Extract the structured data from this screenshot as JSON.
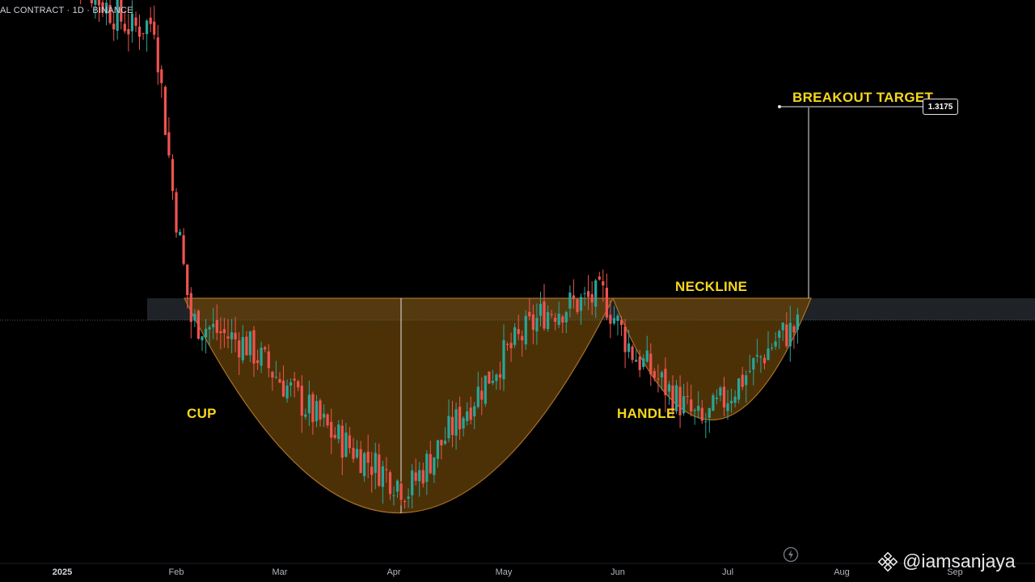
{
  "header": {
    "title": "AL CONTRACT · 1D · BINANCE"
  },
  "annotations": {
    "neckline": "NECKLINE",
    "cup": "CUP",
    "handle": "HANDLE",
    "breakout_target": "BREAKOUT TARGET",
    "target_price": "1.3175"
  },
  "x_axis": {
    "labels": [
      {
        "text": "2025",
        "bold": true
      },
      {
        "text": "Feb"
      },
      {
        "text": "Mar"
      },
      {
        "text": "Apr"
      },
      {
        "text": "May"
      },
      {
        "text": "Jun"
      },
      {
        "text": "Jul"
      },
      {
        "text": "Aug"
      },
      {
        "text": "Sep"
      }
    ]
  },
  "watermark": {
    "handle": "@iamsanjaya",
    "logo_icon": "binance-logo-icon"
  },
  "colors": {
    "up": "#26a69a",
    "down": "#ef5350",
    "pattern_fill": "#6b4408",
    "pattern_stroke": "#a8712a",
    "label": "#f5d71e",
    "neckline_zone": "#2a2e33"
  },
  "chart_data": {
    "type": "candlestick",
    "title": "",
    "timeframe": "1D",
    "exchange": "BINANCE",
    "x": [
      "Jan 2025",
      "Feb",
      "Mar",
      "Apr",
      "May",
      "Jun",
      "Jul",
      "Aug",
      "Sep"
    ],
    "y_approx_path": [
      {
        "date": "2025-01-01",
        "close": 1.7
      },
      {
        "date": "2025-01-10",
        "close": 1.64
      },
      {
        "date": "2025-01-20",
        "close": 1.6
      },
      {
        "date": "2025-01-26",
        "close": 1.61
      },
      {
        "date": "2025-01-31",
        "close": 1.4
      },
      {
        "date": "2025-02-05",
        "close": 1.24
      },
      {
        "date": "2025-02-20",
        "close": 1.21
      },
      {
        "date": "2025-03-15",
        "close": 1.1
      },
      {
        "date": "2025-04-05",
        "close": 1.03
      },
      {
        "date": "2025-04-30",
        "close": 1.19
      },
      {
        "date": "2025-05-12",
        "close": 1.25
      },
      {
        "date": "2025-05-28",
        "close": 1.27
      },
      {
        "date": "2025-06-05",
        "close": 1.2
      },
      {
        "date": "2025-06-24",
        "close": 1.11
      },
      {
        "date": "2025-07-15",
        "close": 1.22
      },
      {
        "date": "2025-07-20",
        "close": 1.23
      }
    ],
    "neckline_level": 1.24,
    "breakout_target": 1.3175,
    "pattern": "cup and handle"
  }
}
